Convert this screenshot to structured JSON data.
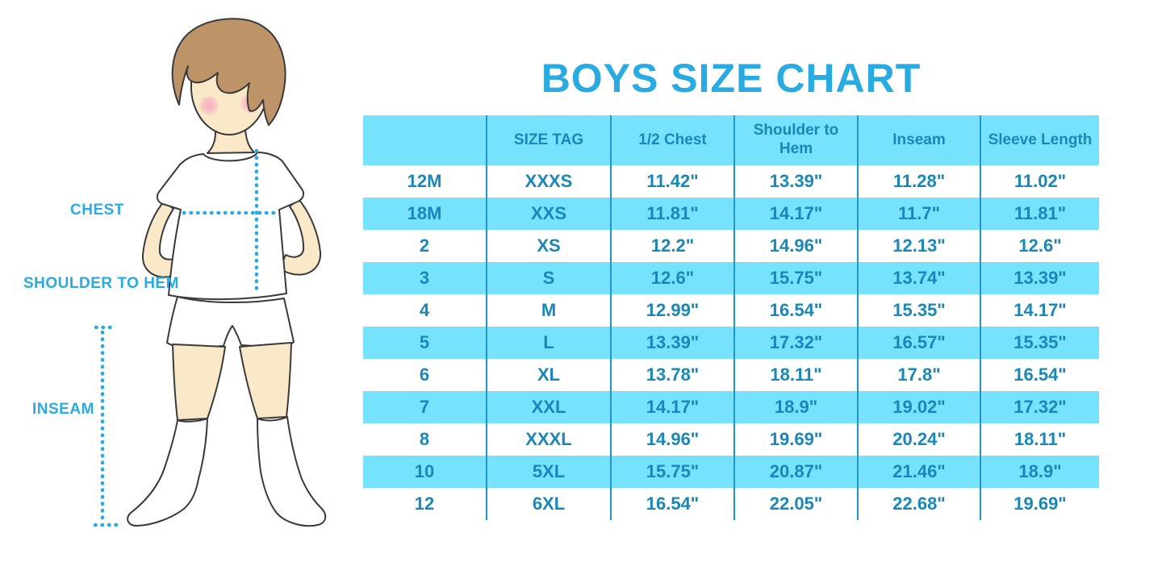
{
  "title": "BOYS SIZE CHART",
  "colors": {
    "accent_blue": "#29ABE2",
    "table_text_blue": "#1987B9",
    "band_cyan": "#76E2FE",
    "divider_blue": "#1E96C8",
    "hair_brown": "#BC9468",
    "skin_tone": "#FAE9C8"
  },
  "figure": {
    "illustration": "boy-with-measurement-guides",
    "labels": {
      "chest": "CHEST",
      "shoulder_to_hem": "SHOULDER TO HEM",
      "inseam": "INSEAM"
    }
  },
  "chart_data": {
    "type": "table",
    "title": "BOYS SIZE CHART",
    "units": "inches",
    "columns": [
      "",
      "SIZE TAG",
      "1/2 Chest",
      "Shoulder to Hem",
      "Inseam",
      "Sleeve Length"
    ],
    "rows": [
      [
        "12M",
        "XXXS",
        "11.42\"",
        "13.39\"",
        "11.28\"",
        "11.02\""
      ],
      [
        "18M",
        "XXS",
        "11.81\"",
        "14.17\"",
        "11.7\"",
        "11.81\""
      ],
      [
        "2",
        "XS",
        "12.2\"",
        "14.96\"",
        "12.13\"",
        "12.6\""
      ],
      [
        "3",
        "S",
        "12.6\"",
        "15.75\"",
        "13.74\"",
        "13.39\""
      ],
      [
        "4",
        "M",
        "12.99\"",
        "16.54\"",
        "15.35\"",
        "14.17\""
      ],
      [
        "5",
        "L",
        "13.39\"",
        "17.32\"",
        "16.57\"",
        "15.35\""
      ],
      [
        "6",
        "XL",
        "13.78\"",
        "18.11\"",
        "17.8\"",
        "16.54\""
      ],
      [
        "7",
        "XXL",
        "14.17\"",
        "18.9\"",
        "19.02\"",
        "17.32\""
      ],
      [
        "8",
        "XXXL",
        "14.96\"",
        "19.69\"",
        "20.24\"",
        "18.11\""
      ],
      [
        "10",
        "5XL",
        "15.75\"",
        "20.87\"",
        "21.46\"",
        "18.9\""
      ],
      [
        "12",
        "6XL",
        "16.54\"",
        "22.05\"",
        "22.68\"",
        "19.69\""
      ]
    ]
  }
}
